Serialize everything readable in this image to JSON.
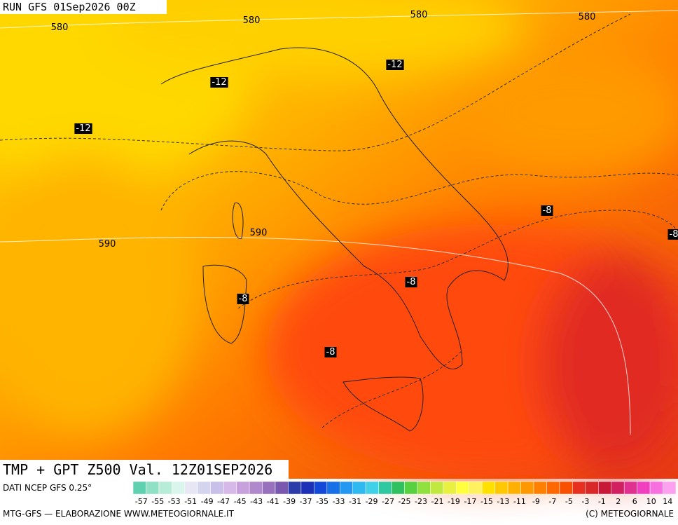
{
  "header": {
    "run": "RUN GFS 01Sep2026 00Z"
  },
  "map": {
    "height_labels": [
      580,
      580,
      580,
      580,
      590,
      590
    ],
    "temp_labels": [
      -12,
      -12,
      -12,
      -8,
      -8,
      -8,
      -8,
      -8
    ]
  },
  "footer": {
    "title": "TMP + GPT Z500 Val. 12Z01SEP2026",
    "source": "DATI NCEP GFS 0.25°",
    "credit_left": "MTG-GFS — ELABORAZIONE WWW.METEOGIORNALE.IT",
    "credit_right": "(C) METEOGIORNALE"
  },
  "colorbar": {
    "labels": [
      -57,
      -55,
      -53,
      -51,
      -49,
      -47,
      -45,
      -43,
      -41,
      -39,
      -37,
      -35,
      -33,
      -31,
      -29,
      -27,
      -25,
      -23,
      -21,
      -19,
      -17,
      -15,
      -13,
      -11,
      -9,
      -7,
      -5,
      -3,
      -1,
      2,
      6,
      10,
      14
    ],
    "colors": [
      "#5fd0b0",
      "#8fe0c4",
      "#b7ecd8",
      "#d9f5ec",
      "#e6e6f5",
      "#d4d4ee",
      "#c8c0e8",
      "#d8b8e8",
      "#c8a0dc",
      "#b088cc",
      "#9870bc",
      "#7a58b0",
      "#2c3ca8",
      "#1c30b8",
      "#1448d8",
      "#1870e8",
      "#2498f0",
      "#30b8f0",
      "#40d0e8",
      "#30c8a0",
      "#30c060",
      "#58d040",
      "#90e040",
      "#c0e840",
      "#e8f040",
      "#ffff40",
      "#fff060",
      "#ffe000",
      "#ffc800",
      "#ffb000",
      "#ff9800",
      "#ff8000",
      "#ff6800",
      "#f85000",
      "#e83020",
      "#d82828",
      "#c81838",
      "#d02060",
      "#e03090",
      "#f040c0",
      "#f870e0",
      "#fca0f0"
    ]
  }
}
